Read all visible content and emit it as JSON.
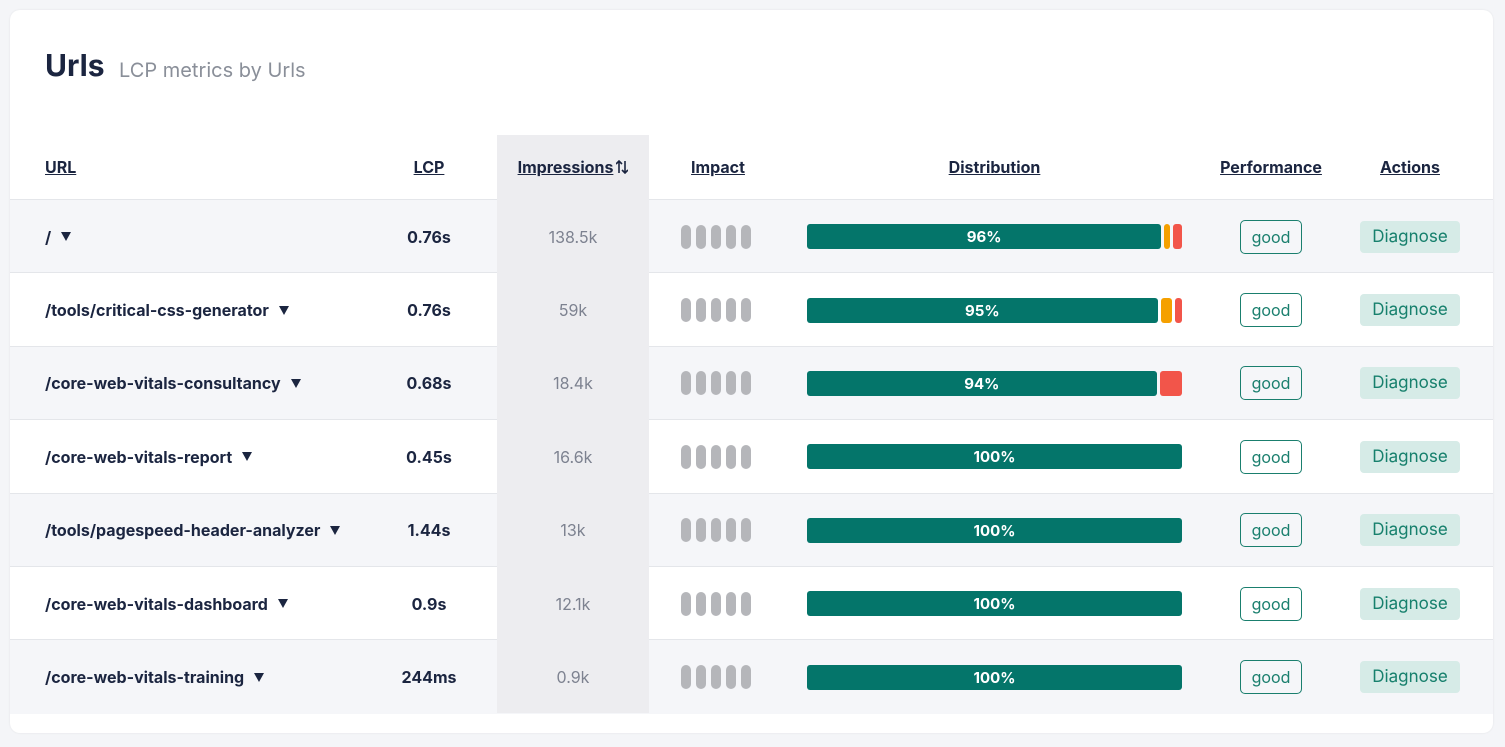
{
  "header": {
    "title": "Urls",
    "subtitle": "LCP metrics by Urls"
  },
  "table": {
    "columns": [
      "URL",
      "LCP",
      "Impressions",
      "Impact",
      "Distribution",
      "Performance",
      "Actions"
    ],
    "rows": [
      {
        "url": "/",
        "lcp": "0.76s",
        "impressions": "138.5k",
        "distribution": {
          "good": 96,
          "label": "96%",
          "needs_improvement": 1.5,
          "poor": 2.5
        },
        "performance": "good",
        "action": "Diagnose"
      },
      {
        "url": "/tools/critical-css-generator",
        "lcp": "0.76s",
        "impressions": "59k",
        "distribution": {
          "good": 95,
          "label": "95%",
          "needs_improvement": 3,
          "poor": 2
        },
        "performance": "good",
        "action": "Diagnose"
      },
      {
        "url": "/core-web-vitals-consultancy",
        "lcp": "0.68s",
        "impressions": "18.4k",
        "distribution": {
          "good": 94,
          "label": "94%",
          "needs_improvement": 0,
          "poor": 6
        },
        "performance": "good",
        "action": "Diagnose"
      },
      {
        "url": "/core-web-vitals-report",
        "lcp": "0.45s",
        "impressions": "16.6k",
        "distribution": {
          "good": 100,
          "label": "100%",
          "needs_improvement": 0,
          "poor": 0
        },
        "performance": "good",
        "action": "Diagnose"
      },
      {
        "url": "/tools/pagespeed-header-analyzer",
        "lcp": "1.44s",
        "impressions": "13k",
        "distribution": {
          "good": 100,
          "label": "100%",
          "needs_improvement": 0,
          "poor": 0
        },
        "performance": "good",
        "action": "Diagnose"
      },
      {
        "url": "/core-web-vitals-dashboard",
        "lcp": "0.9s",
        "impressions": "12.1k",
        "distribution": {
          "good": 100,
          "label": "100%",
          "needs_improvement": 0,
          "poor": 0
        },
        "performance": "good",
        "action": "Diagnose"
      },
      {
        "url": "/core-web-vitals-training",
        "lcp": "244ms",
        "impressions": "0.9k",
        "distribution": {
          "good": 100,
          "label": "100%",
          "needs_improvement": 0,
          "poor": 0
        },
        "performance": "good",
        "action": "Diagnose"
      }
    ]
  }
}
